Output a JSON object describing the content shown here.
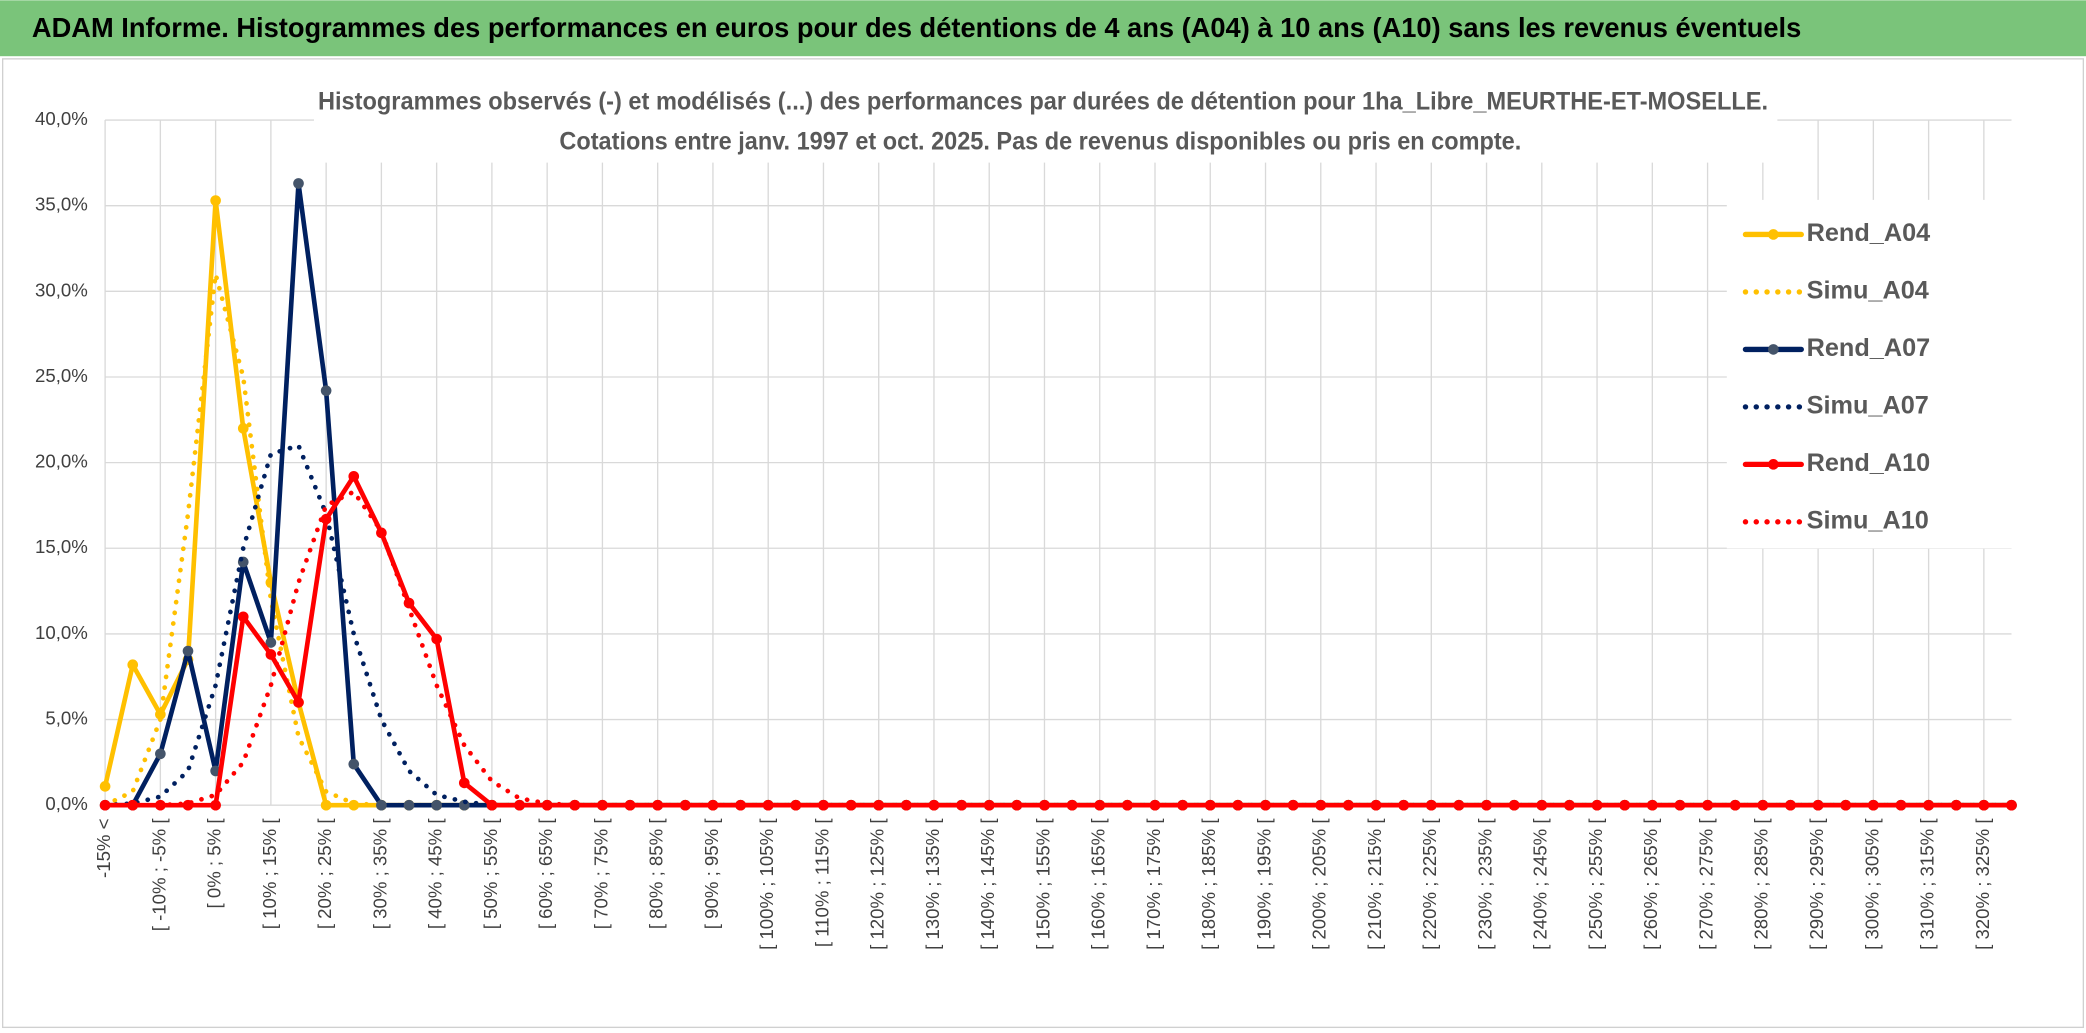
{
  "header": {
    "title": "ADAM Informe. Histogrammes des performances en euros pour des détentions de 4 ans (A04) à 10 ans (A10) sans les revenus éventuels"
  },
  "chart_data": {
    "type": "line",
    "title": "Histogrammes observés (-) et modélisés (...) des performances par durées de détention pour 1ha_Libre_MEURTHE-ET-MOSELLE.",
    "subtitle": "Cotations entre janv. 1997 et oct. 2025. Pas de revenus disponibles ou pris en compte.",
    "categories": [
      "-15% <",
      null,
      "[ -10% ; -5% [",
      null,
      "[ 0% ; 5% [",
      null,
      "[ 10% ; 15% [",
      null,
      "[ 20% ; 25% [",
      null,
      "[ 30% ; 35% [",
      null,
      "[ 40% ; 45% [",
      null,
      "[ 50% ; 55% [",
      null,
      "[ 60% ; 65% [",
      null,
      "[ 70% ; 75% [",
      null,
      "[ 80% ; 85% [",
      null,
      "[ 90% ; 95% [",
      null,
      "[ 100% ; 105% [",
      null,
      "[ 110% ; 115% [",
      null,
      "[ 120% ; 125% [",
      null,
      "[ 130% ; 135% [",
      null,
      "[ 140% ; 145% [",
      null,
      "[ 150% ; 155% [",
      null,
      "[ 160% ; 165% [",
      null,
      "[ 170% ; 175% [",
      null,
      "[ 180% ; 185% [",
      null,
      "[ 190% ; 195% [",
      null,
      "[ 200% ; 205% [",
      null,
      "[ 210% ; 215% [",
      null,
      "[ 220% ; 225% [",
      null,
      "[ 230% ; 235% [",
      null,
      "[ 240% ; 245% [",
      null,
      "[ 250% ; 255% [",
      null,
      "[ 260% ; 265% [",
      null,
      "[ 270% ; 275% [",
      null,
      "[ 280% ; 285% [",
      null,
      "[ 290% ; 295% [",
      null,
      "[ 300% ; 305% [",
      null,
      "[ 310% ; 315% [",
      null,
      "[ 320% ; 325% [",
      null
    ],
    "series": [
      {
        "name": "Rend_A04",
        "color": "#ffc000",
        "style": "solid",
        "values": [
          1.1,
          8.2,
          5.3,
          8.5,
          35.3,
          22,
          13,
          6,
          0,
          0,
          0,
          0,
          0,
          0,
          0,
          0,
          0,
          0,
          0,
          0,
          0,
          0,
          0,
          0,
          0,
          0,
          0,
          0,
          0,
          0,
          0,
          0,
          0,
          0,
          0,
          0,
          0,
          0,
          0,
          0,
          0,
          0,
          0,
          0,
          0,
          0,
          0,
          0,
          0,
          0,
          0,
          0,
          0,
          0,
          0,
          0,
          0,
          0,
          0,
          0,
          0,
          0,
          0,
          0,
          0,
          0,
          0,
          0,
          0,
          0
        ]
      },
      {
        "name": "Simu_A04",
        "color": "#ffc000",
        "style": "dotted",
        "values": [
          0,
          0.8,
          5,
          17,
          31,
          25,
          12,
          4,
          0.8,
          0.1,
          0,
          0,
          0,
          0,
          0,
          0,
          0,
          0,
          0,
          0,
          0,
          0,
          0,
          0,
          0,
          0,
          0,
          0,
          0,
          0,
          0,
          0,
          0,
          0,
          0,
          0,
          0,
          0,
          0,
          0,
          0,
          0,
          0,
          0,
          0,
          0,
          0,
          0,
          0,
          0,
          0,
          0,
          0,
          0,
          0,
          0,
          0,
          0,
          0,
          0,
          0,
          0,
          0,
          0,
          0,
          0,
          0,
          0,
          0,
          0
        ]
      },
      {
        "name": "Rend_A07",
        "color": "#002060",
        "style": "solid",
        "values": [
          0,
          0,
          3,
          9,
          2,
          14.2,
          9.5,
          36.3,
          24.2,
          2.4,
          0,
          0,
          0,
          0,
          0,
          0,
          0,
          0,
          0,
          0,
          0,
          0,
          0,
          0,
          0,
          0,
          0,
          0,
          0,
          0,
          0,
          0,
          0,
          0,
          0,
          0,
          0,
          0,
          0,
          0,
          0,
          0,
          0,
          0,
          0,
          0,
          0,
          0,
          0,
          0,
          0,
          0,
          0,
          0,
          0,
          0,
          0,
          0,
          0,
          0,
          0,
          0,
          0,
          0,
          0,
          0,
          0,
          0,
          0,
          0
        ]
      },
      {
        "name": "Simu_A07",
        "color": "#002060",
        "style": "dotted",
        "values": [
          0,
          0.1,
          0.5,
          2,
          7,
          15,
          20.5,
          21,
          17,
          10,
          5,
          2,
          0.6,
          0.2,
          0,
          0,
          0,
          0,
          0,
          0,
          0,
          0,
          0,
          0,
          0,
          0,
          0,
          0,
          0,
          0,
          0,
          0,
          0,
          0,
          0,
          0,
          0,
          0,
          0,
          0,
          0,
          0,
          0,
          0,
          0,
          0,
          0,
          0,
          0,
          0,
          0,
          0,
          0,
          0,
          0,
          0,
          0,
          0,
          0,
          0,
          0,
          0,
          0,
          0,
          0,
          0,
          0,
          0,
          0,
          0
        ]
      },
      {
        "name": "Rend_A10",
        "color": "#ff0000",
        "style": "solid",
        "values": [
          0,
          0,
          0,
          0,
          0,
          11,
          8.8,
          6,
          16.7,
          19.2,
          15.9,
          11.8,
          9.7,
          1.3,
          0,
          0,
          0,
          0,
          0,
          0,
          0,
          0,
          0,
          0,
          0,
          0,
          0,
          0,
          0,
          0,
          0,
          0,
          0,
          0,
          0,
          0,
          0,
          0,
          0,
          0,
          0,
          0,
          0,
          0,
          0,
          0,
          0,
          0,
          0,
          0,
          0,
          0,
          0,
          0,
          0,
          0,
          0,
          0,
          0,
          0,
          0,
          0,
          0,
          0,
          0,
          0,
          0,
          0,
          0,
          0
        ]
      },
      {
        "name": "Simu_A10",
        "color": "#ff0000",
        "style": "dotted",
        "values": [
          0,
          0,
          0,
          0.1,
          0.6,
          2.5,
          7,
          13,
          17.5,
          18.3,
          16,
          11.5,
          7,
          3.5,
          1.4,
          0.4,
          0.1,
          0,
          0,
          0,
          0,
          0,
          0,
          0,
          0,
          0,
          0,
          0,
          0,
          0,
          0,
          0,
          0,
          0,
          0,
          0,
          0,
          0,
          0,
          0,
          0,
          0,
          0,
          0,
          0,
          0,
          0,
          0,
          0,
          0,
          0,
          0,
          0,
          0,
          0,
          0,
          0,
          0,
          0,
          0,
          0,
          0,
          0,
          0,
          0,
          0,
          0,
          0,
          0,
          0
        ]
      }
    ],
    "ylim": [
      0,
      40
    ],
    "yticks": [
      {
        "value": 0,
        "label": "0,0%"
      },
      {
        "value": 5,
        "label": "5,0%"
      },
      {
        "value": 10,
        "label": "10,0%"
      },
      {
        "value": 15,
        "label": "15,0%"
      },
      {
        "value": 20,
        "label": "20,0%"
      },
      {
        "value": 25,
        "label": "25,0%"
      },
      {
        "value": 30,
        "label": "30,0%"
      },
      {
        "value": 35,
        "label": "35,0%"
      },
      {
        "value": 40,
        "label": "40,0%"
      }
    ],
    "grid": true,
    "legend": "right"
  }
}
